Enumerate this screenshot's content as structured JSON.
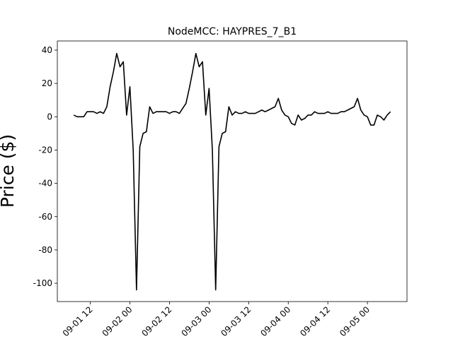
{
  "chart_data": {
    "type": "line",
    "title": "NodeMCC: HAYPRES_7_B1",
    "y_label": "Price ($)",
    "x": [
      "09-01 07",
      "09-01 08",
      "09-01 09",
      "09-01 10",
      "09-01 11",
      "09-01 12",
      "09-01 13",
      "09-01 14",
      "09-01 15",
      "09-01 16",
      "09-01 17",
      "09-01 18",
      "09-01 19",
      "09-01 20",
      "09-01 21",
      "09-01 22",
      "09-01 23",
      "09-02 00",
      "09-02 01",
      "09-02 02",
      "09-02 03",
      "09-02 04",
      "09-02 05",
      "09-02 06",
      "09-02 07",
      "09-02 08",
      "09-02 09",
      "09-02 10",
      "09-02 11",
      "09-02 12",
      "09-02 13",
      "09-02 14",
      "09-02 15",
      "09-02 16",
      "09-02 17",
      "09-02 18",
      "09-02 19",
      "09-02 20",
      "09-02 21",
      "09-02 22",
      "09-02 23",
      "09-03 00",
      "09-03 01",
      "09-03 02",
      "09-03 03",
      "09-03 04",
      "09-03 05",
      "09-03 06",
      "09-03 07",
      "09-03 08",
      "09-03 09",
      "09-03 10",
      "09-03 11",
      "09-03 12",
      "09-03 13",
      "09-03 14",
      "09-03 15",
      "09-03 16",
      "09-03 17",
      "09-03 18",
      "09-03 19",
      "09-03 20",
      "09-03 21",
      "09-03 22",
      "09-03 23",
      "09-04 00",
      "09-04 01",
      "09-04 02",
      "09-04 03",
      "09-04 04",
      "09-04 05",
      "09-04 06",
      "09-04 07",
      "09-04 08",
      "09-04 09",
      "09-04 10",
      "09-04 11",
      "09-04 12",
      "09-04 13",
      "09-04 14",
      "09-04 15",
      "09-04 16",
      "09-04 17",
      "09-04 18",
      "09-04 19",
      "09-04 20",
      "09-04 21",
      "09-04 22",
      "09-04 23",
      "09-05 00",
      "09-05 01",
      "09-05 02",
      "09-05 03",
      "09-05 04",
      "09-05 05",
      "09-05 06",
      "09-05 07"
    ],
    "series": [
      {
        "color": "#000000",
        "values": [
          1,
          0,
          0,
          0,
          3,
          3,
          3,
          2,
          3,
          2,
          6,
          18,
          27,
          38,
          30,
          33,
          1,
          18,
          -20,
          -104,
          -18,
          -10,
          -9,
          6,
          2,
          3,
          3,
          3,
          3,
          2,
          3,
          3,
          2,
          5,
          8,
          17,
          27,
          38,
          30,
          33,
          1,
          17,
          -20,
          -104,
          -18,
          -10,
          -9,
          6,
          1,
          3,
          2,
          2,
          3,
          2,
          2,
          2,
          3,
          4,
          3,
          4,
          5,
          6,
          11,
          4,
          1,
          0,
          -4,
          -5,
          1,
          -2,
          -1,
          1,
          1,
          3,
          2,
          2,
          2,
          3,
          2,
          2,
          2,
          3,
          3,
          4,
          5,
          6,
          11,
          4,
          1,
          0,
          -5,
          -5,
          1,
          0,
          -2,
          1,
          3
        ]
      }
    ],
    "xlim": [
      "09-01 02",
      "09-05 12"
    ],
    "xticks": [
      "09-01 12",
      "09-02 00",
      "09-02 12",
      "09-03 00",
      "09-03 12",
      "09-04 00",
      "09-04 12",
      "09-05 00"
    ],
    "ylim": [
      -111,
      45.5
    ],
    "yticks": [
      40,
      20,
      0,
      -20,
      -40,
      -60,
      -80,
      -100
    ]
  }
}
